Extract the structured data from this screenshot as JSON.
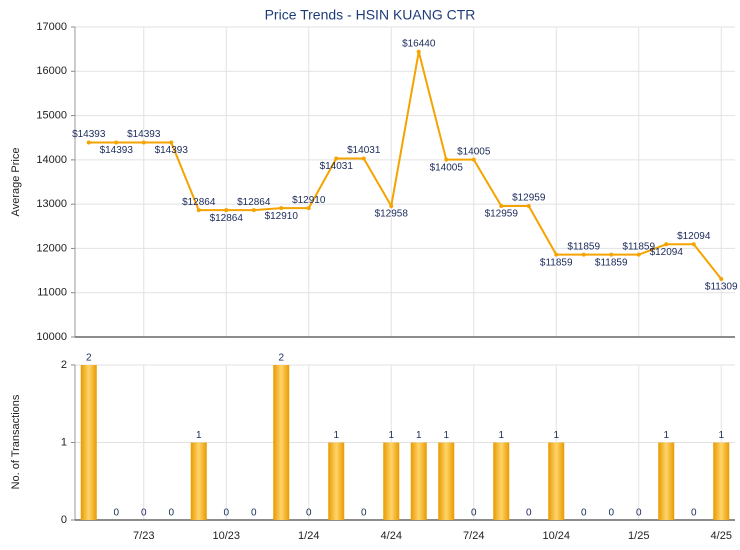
{
  "chart_data": [
    {
      "type": "line",
      "title": "Price Trends - HSIN KUANG CTR",
      "ylabel": "Average Price",
      "categories": [
        null,
        null,
        "7/23",
        null,
        null,
        "10/23",
        null,
        null,
        "1/24",
        null,
        null,
        "4/24",
        null,
        null,
        "7/24",
        null,
        null,
        "10/24",
        null,
        null,
        "1/25",
        null,
        null,
        "4/25"
      ],
      "series": [
        {
          "name": "Average Price",
          "color": "#f5a300",
          "values": [
            14393,
            14393,
            14393,
            14393,
            12864,
            12864,
            12864,
            12910,
            12910,
            14031,
            14031,
            12958,
            16440,
            14005,
            14005,
            12959,
            12959,
            11859,
            11859,
            11859,
            11859,
            12094,
            12094,
            11309
          ],
          "value_labels": [
            "$14393",
            "$14393",
            "$14393",
            "$14393",
            "$12864",
            "$12864",
            "$12864",
            "$12910",
            "$12910",
            "$14031",
            "$14031",
            "$12958",
            "$16440",
            "$14005",
            "$14005",
            "$12959",
            "$12959",
            "$11859",
            "$11859",
            "$11859",
            "$11859",
            "$12094",
            "$12094",
            "$11309"
          ]
        }
      ],
      "ylim": [
        10000,
        17000
      ],
      "yticks": [
        10000,
        11000,
        12000,
        13000,
        14000,
        15000,
        16000,
        17000
      ],
      "grid": true
    },
    {
      "type": "bar",
      "ylabel": "No. of Transactions",
      "color": "#f5a300",
      "values": [
        2,
        0,
        0,
        0,
        1,
        0,
        0,
        2,
        0,
        1,
        0,
        1,
        1,
        1,
        0,
        1,
        0,
        1,
        0,
        0,
        0,
        1,
        0,
        1
      ],
      "ylim": [
        0,
        2
      ],
      "yticks": [
        0,
        1,
        2
      ],
      "grid": true
    }
  ]
}
